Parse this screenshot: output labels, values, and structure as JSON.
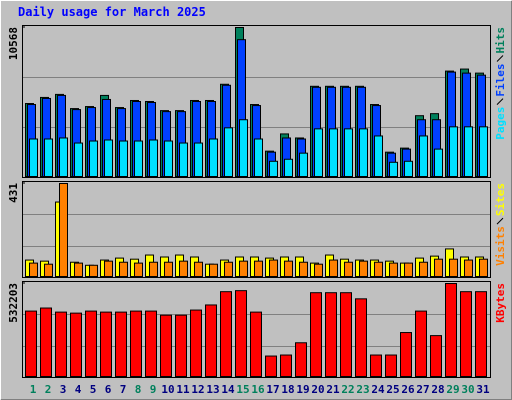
{
  "chart_data": [
    {
      "type": "bar",
      "title": "Daily usage for March 2025",
      "series": [
        {
          "name": "Hits",
          "color": "#00805c",
          "values": [
            5212,
            5641,
            5855,
            4855,
            4998,
            5783,
            4927,
            5426,
            5355,
            4712,
            4712,
            5426,
            5426,
            6569,
            10568,
            5141,
            1856,
            3070,
            2785,
            6426,
            6426,
            6426,
            6426,
            5141,
            1785,
            2071,
            4355,
            4498,
            7497,
            7640,
            7354
          ]
        },
        {
          "name": "Files",
          "color": "#0040ff",
          "values": [
            5141,
            5570,
            5783,
            4784,
            4927,
            5498,
            4855,
            5355,
            5283,
            4641,
            4641,
            5355,
            5355,
            6498,
            9710,
            5069,
            1785,
            2785,
            2713,
            6355,
            6355,
            6355,
            6355,
            5069,
            1713,
            1999,
            4070,
            4070,
            7426,
            7354,
            7211
          ]
        },
        {
          "name": "Pages",
          "color": "#00e0ff",
          "values": [
            2713,
            2713,
            2785,
            2428,
            2570,
            2642,
            2570,
            2570,
            2642,
            2570,
            2428,
            2428,
            2713,
            3499,
            4070,
            2713,
            1142,
            1285,
            1714,
            3427,
            3427,
            3427,
            3427,
            2927,
            1071,
            1142,
            2927,
            2000,
            3570,
            3570,
            3570
          ]
        }
      ],
      "ylim": [
        0,
        10568
      ],
      "yticks": [
        10568
      ]
    },
    {
      "type": "bar",
      "series": [
        {
          "name": "Sites",
          "color": "#ffff00",
          "values": [
            80,
            75,
            346,
            70,
            56,
            80,
            89,
            84,
            103,
            94,
            103,
            94,
            61,
            80,
            94,
            94,
            89,
            94,
            94,
            66,
            103,
            84,
            80,
            80,
            75,
            66,
            89,
            98,
            131,
            94,
            94
          ]
        },
        {
          "name": "Visits",
          "color": "#ff8000",
          "values": [
            66,
            61,
            431,
            66,
            56,
            75,
            70,
            66,
            70,
            70,
            75,
            70,
            61,
            70,
            75,
            75,
            80,
            75,
            70,
            61,
            80,
            70,
            75,
            70,
            66,
            66,
            70,
            84,
            84,
            80,
            84
          ]
        }
      ],
      "ylim": [
        0,
        431
      ],
      "yticks": [
        431
      ]
    },
    {
      "type": "bar",
      "categories": [
        "1",
        "2",
        "3",
        "4",
        "5",
        "6",
        "7",
        "8",
        "9",
        "10",
        "11",
        "12",
        "13",
        "14",
        "15",
        "16",
        "17",
        "18",
        "19",
        "20",
        "21",
        "22",
        "23",
        "24",
        "25",
        "26",
        "27",
        "28",
        "29",
        "30",
        "31"
      ],
      "category_colors": [
        "#00805c",
        "#00805c",
        "#000080",
        "#000080",
        "#000080",
        "#000080",
        "#000080",
        "#00805c",
        "#00805c",
        "#000080",
        "#000080",
        "#000080",
        "#000080",
        "#000080",
        "#00805c",
        "#00805c",
        "#000080",
        "#000080",
        "#000080",
        "#000080",
        "#000080",
        "#00805c",
        "#00805c",
        "#000080",
        "#000080",
        "#000080",
        "#000080",
        "#000080",
        "#00805c",
        "#00805c",
        "#000080"
      ],
      "series": [
        {
          "name": "KBytes",
          "color": "#ff0000",
          "values": [
            376025,
            393380,
            370240,
            364455,
            376025,
            370240,
            370240,
            376025,
            376025,
            352885,
            352885,
            381810,
            410735,
            485940,
            491725,
            370240,
            121485,
            127270,
            196690,
            480155,
            480155,
            480155,
            445445,
            127270,
            127270,
            254540,
            376025,
            237185,
            532203,
            485940,
            485940
          ]
        }
      ],
      "ylim": [
        0,
        532203
      ],
      "yticks": [
        532203
      ]
    }
  ]
}
